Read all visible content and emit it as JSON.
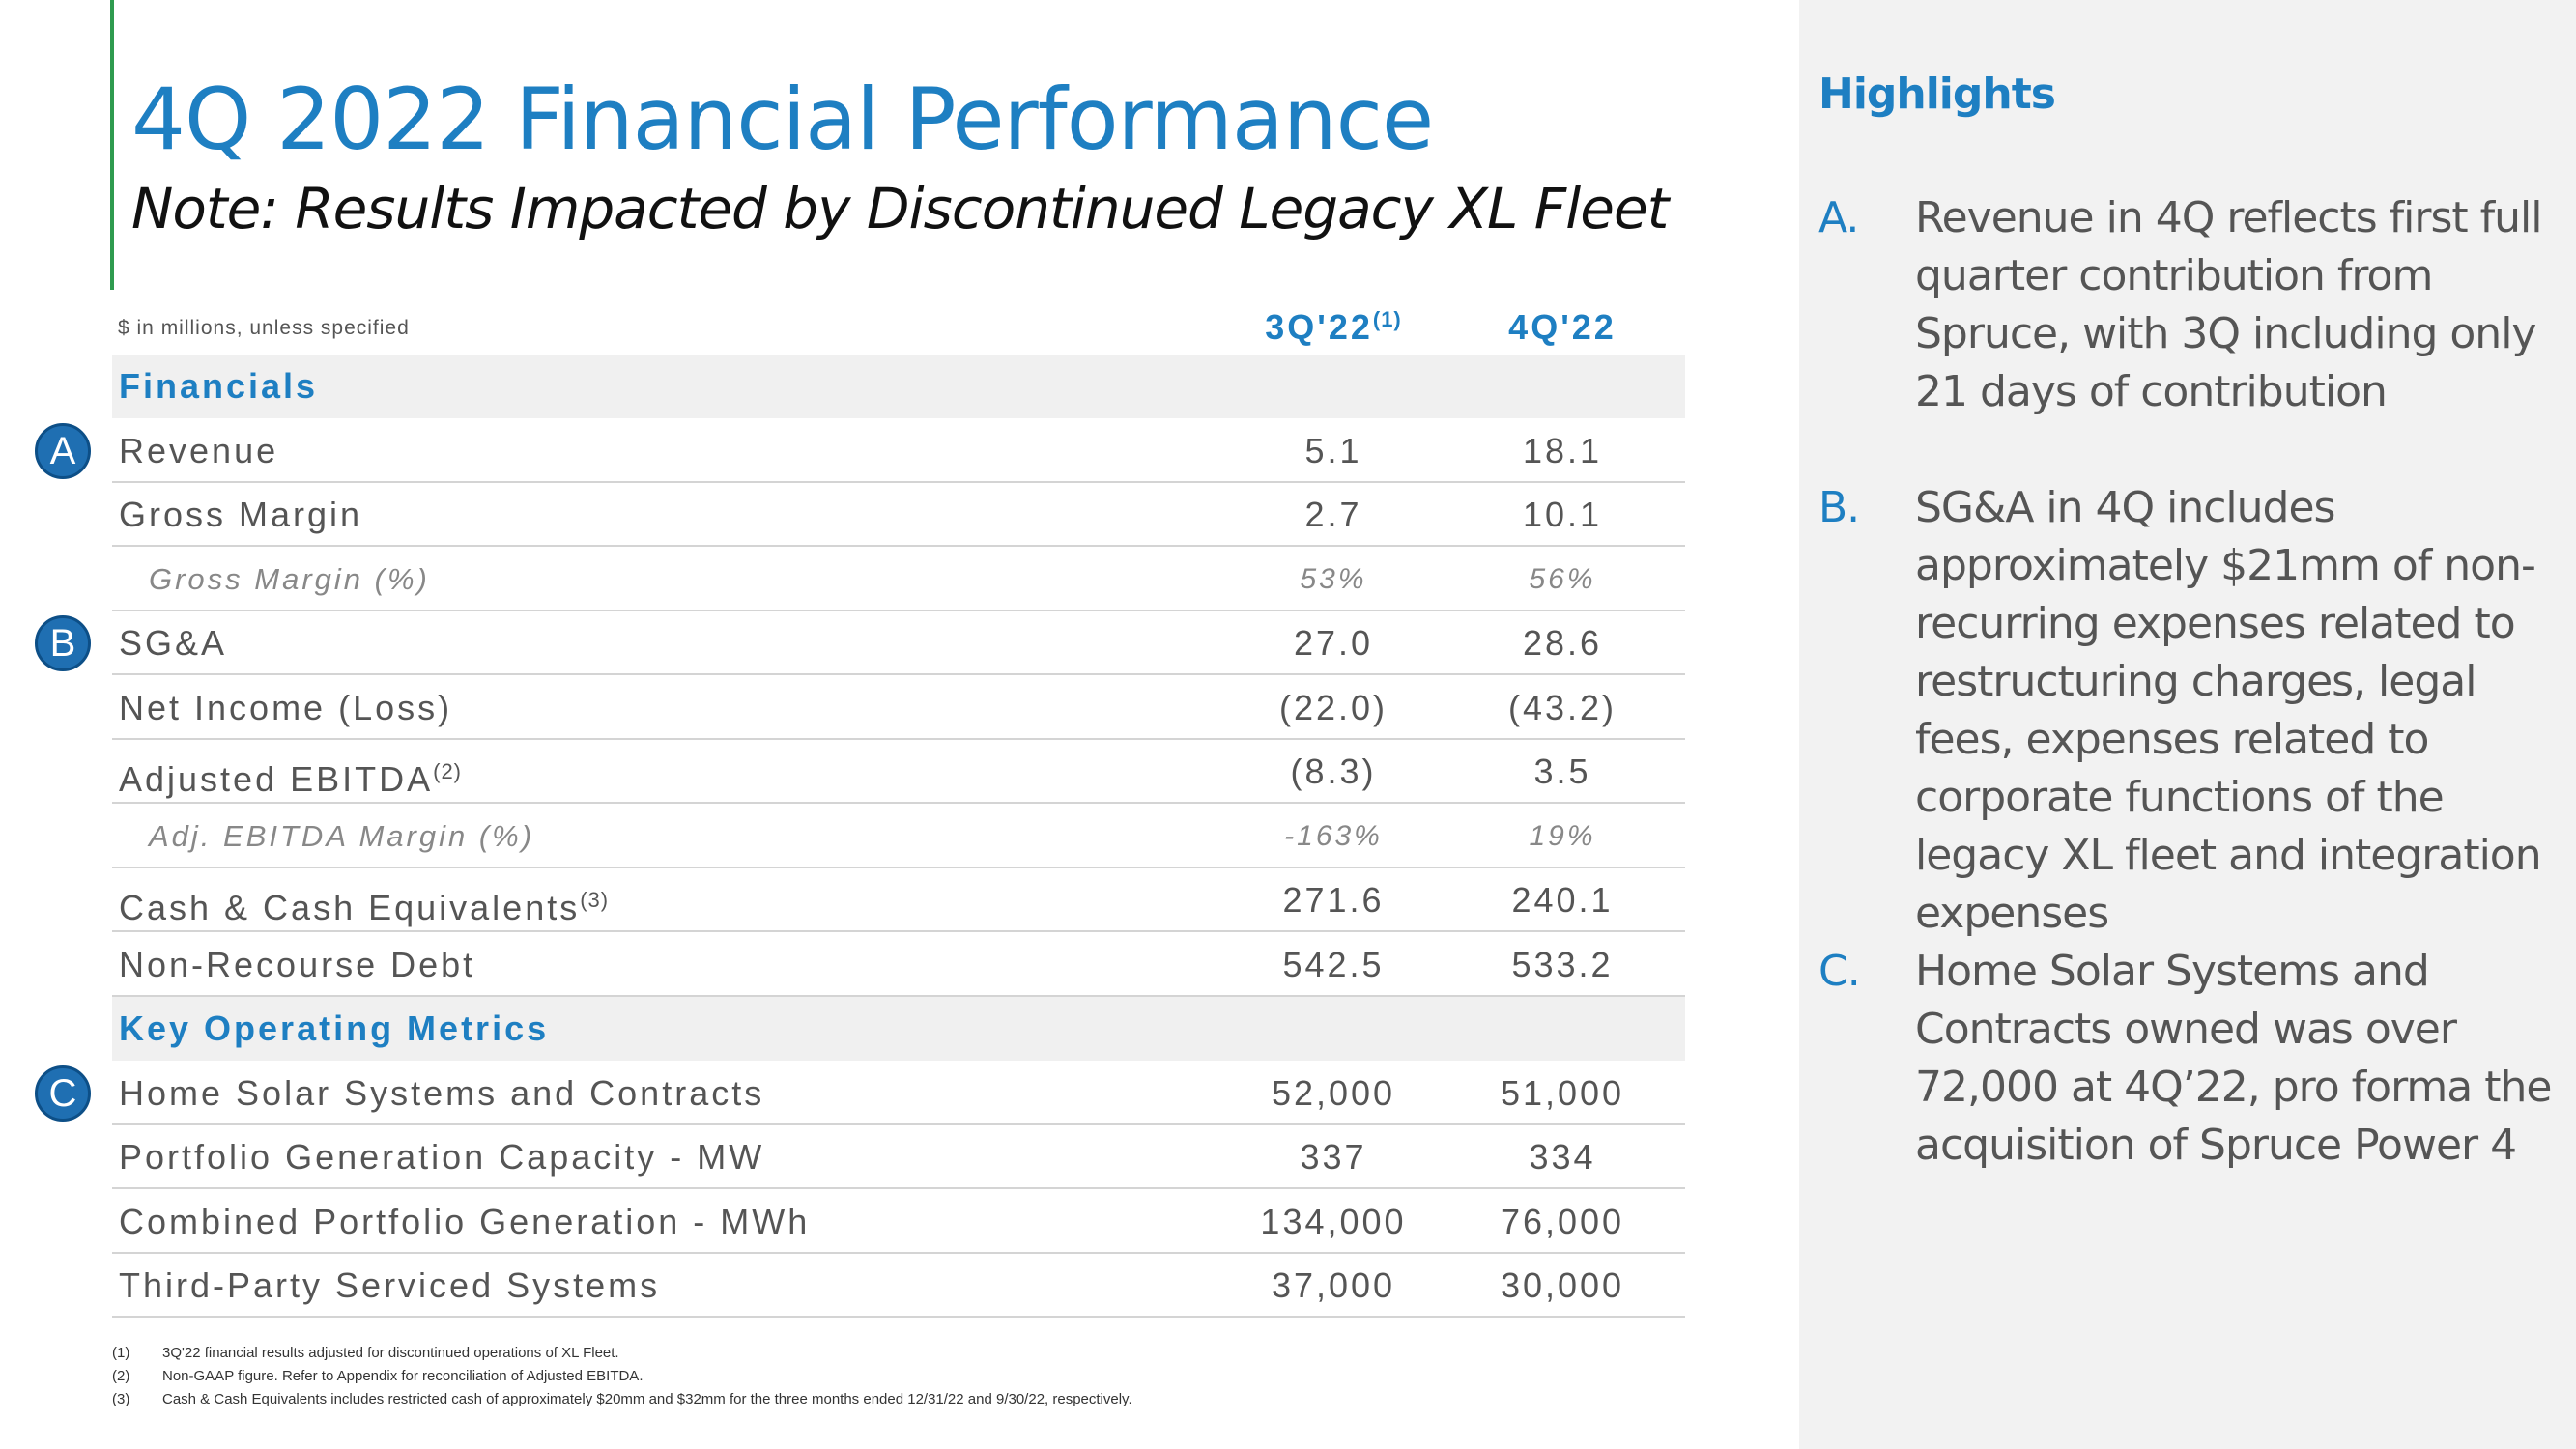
{
  "title": "4Q 2022 Financial Performance",
  "subtitle": "Note: Results Impacted by Discontinued Legacy XL Fleet",
  "table": {
    "unit_note": "$ in millions, unless specified",
    "columns": [
      {
        "label": "3Q'22",
        "note": "(1)"
      },
      {
        "label": "4Q'22"
      }
    ],
    "rows": [
      {
        "label": "Financials",
        "style": "section"
      },
      {
        "label": "Revenue",
        "values": [
          "5.1",
          "18.1"
        ],
        "marker": "A"
      },
      {
        "label": "Gross Margin",
        "values": [
          "2.7",
          "10.1"
        ]
      },
      {
        "label": "Gross Margin (%)",
        "values": [
          "53%",
          "56%"
        ],
        "style": "italic"
      },
      {
        "label": "SG&A",
        "values": [
          "27.0",
          "28.6"
        ],
        "marker": "B"
      },
      {
        "label": "Net Income (Loss)",
        "values": [
          "(22.0)",
          "(43.2)"
        ]
      },
      {
        "label": "Adjusted EBITDA",
        "note": "(2)",
        "values": [
          "(8.3)",
          "3.5"
        ]
      },
      {
        "label": "Adj. EBITDA Margin (%)",
        "values": [
          "-163%",
          "19%"
        ],
        "style": "italic"
      },
      {
        "label": "Cash & Cash Equivalents",
        "note": "(3)",
        "values": [
          "271.6",
          "240.1"
        ]
      },
      {
        "label": "Non-Recourse Debt",
        "values": [
          "542.5",
          "533.2"
        ]
      },
      {
        "label": "Key Operating Metrics",
        "style": "section"
      },
      {
        "label": "Home Solar Systems and Contracts",
        "values": [
          "52,000",
          "51,000"
        ],
        "marker": "C"
      },
      {
        "label": "Portfolio Generation Capacity - MW",
        "values": [
          "337",
          "334"
        ]
      },
      {
        "label": "Combined Portfolio Generation - MWh",
        "values": [
          "134,000",
          "76,000"
        ]
      },
      {
        "label": "Third-Party Serviced Systems",
        "values": [
          "37,000",
          "30,000"
        ]
      }
    ]
  },
  "footnotes": [
    {
      "num": "(1)",
      "text": "3Q'22 financial results adjusted for discontinued operations of XL Fleet."
    },
    {
      "num": "(2)",
      "text": "Non-GAAP figure. Refer to Appendix for reconciliation of Adjusted EBITDA."
    },
    {
      "num": "(3)",
      "text": "Cash & Cash Equivalents includes restricted cash of approximately $20mm and $32mm for the three months ended 12/31/22 and 9/30/22, respectively."
    }
  ],
  "highlights": {
    "title": "Highlights",
    "items": [
      {
        "letter": "A.",
        "text": "Revenue in 4Q reflects first full quarter contribution from Spruce, with 3Q including only 21 days of contribution"
      },
      {
        "letter": "B.",
        "text": "SG&A in 4Q includes approximately $21mm of non-recurring expenses related to restructuring charges, legal fees, expenses related to corporate functions of the legacy XL fleet and integration expenses"
      },
      {
        "letter": "C.",
        "text": "Home Solar Systems and Contracts owned was over 72,000 at 4Q’22, pro forma the acquisition of Spruce Power 4"
      }
    ]
  }
}
